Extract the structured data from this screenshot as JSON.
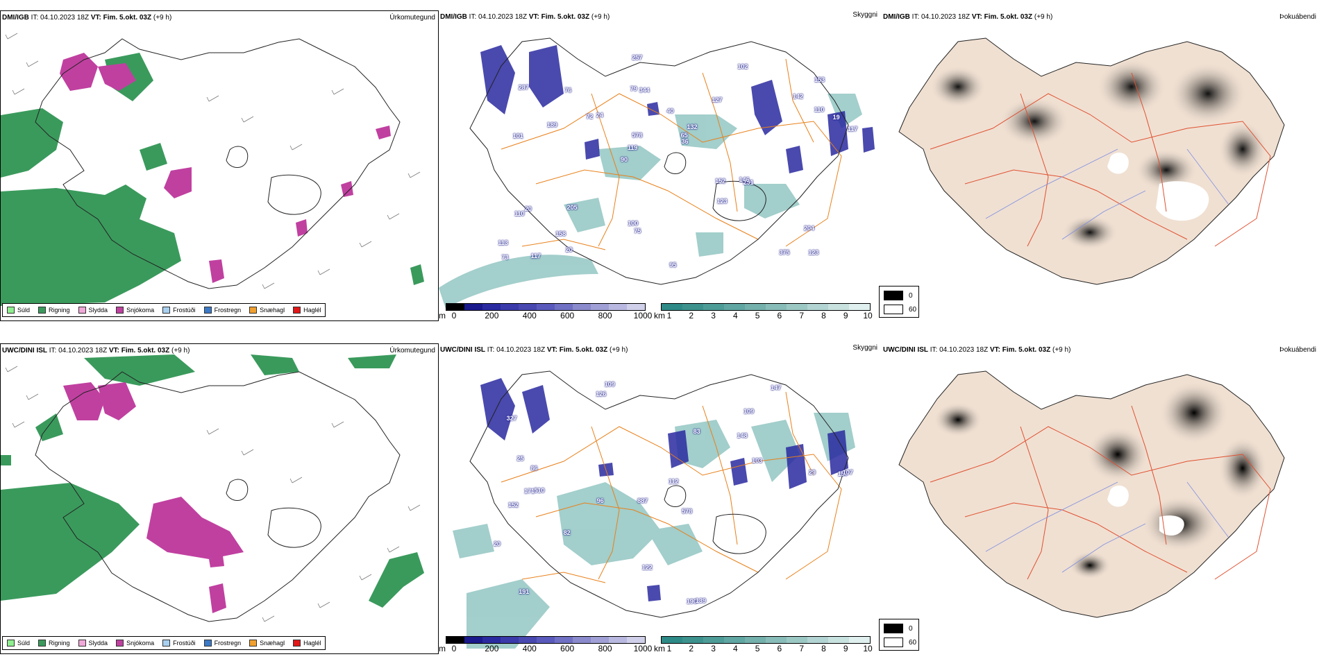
{
  "rows": [
    {
      "model": "DMI/IGB",
      "it_label": "IT:",
      "it_value": "04.10.2023 18Z",
      "vt_label": "VT:",
      "vt_value": "Fim. 5.okt. 03Z",
      "lead": "(+9 h)"
    },
    {
      "model": "UWC/DINI ISL",
      "it_label": "IT:",
      "it_value": "04.10.2023 18Z",
      "vt_label": "VT:",
      "vt_value": "Fim. 5.okt. 03Z",
      "lead": "(+9 h)"
    }
  ],
  "titles": {
    "precip_type": "Úrkomutegund",
    "visibility": "Skyggni",
    "fog": "Þokuábendi"
  },
  "precip_legend": [
    {
      "label": "Súld",
      "color": "#90ee90"
    },
    {
      "label": "Rigning",
      "color": "#3a9a5c"
    },
    {
      "label": "Slydda",
      "color": "#f0a8d8"
    },
    {
      "label": "Snjókoma",
      "color": "#c040a0"
    },
    {
      "label": "Frostúði",
      "color": "#a8d0f0"
    },
    {
      "label": "Frostregn",
      "color": "#3a7ac8"
    },
    {
      "label": "Snæhagl",
      "color": "#f0a030"
    },
    {
      "label": "Haglél",
      "color": "#e01818"
    }
  ],
  "cloud_base_bar": {
    "unit": "m",
    "ticks": [
      "0",
      "200",
      "400",
      "600",
      "800",
      "1000"
    ],
    "colors": [
      "#000000",
      "#1a1a8c",
      "#2a2aa0",
      "#3a3aaa",
      "#4848b0",
      "#5a5abc",
      "#7070c4",
      "#8a8acc",
      "#a0a0d6",
      "#b8b8e0",
      "#d0d0ea"
    ]
  },
  "visibility_bar": {
    "unit": "km",
    "ticks": [
      "1",
      "2",
      "3",
      "4",
      "5",
      "6",
      "7",
      "8",
      "9",
      "10"
    ],
    "colors": [
      "#2e8a86",
      "#3d928e",
      "#4e9c98",
      "#60a6a2",
      "#74b0ac",
      "#88bcb8",
      "#9cc8c4",
      "#b2d4d2",
      "#c8e2e0",
      "#e0f0ef"
    ]
  },
  "fog_legend": [
    {
      "label": "0",
      "color": "#000000"
    },
    {
      "label": "60",
      "color": "#ffffff"
    }
  ],
  "visibility_labels_top": [
    "123",
    "101",
    "153",
    "90",
    "127",
    "117",
    "79",
    "40",
    "20",
    "24",
    "113",
    "158",
    "344",
    "132",
    "291",
    "287",
    "257",
    "117",
    "152",
    "110",
    "119",
    "100",
    "578",
    "76",
    "102",
    "205",
    "375",
    "204",
    "146",
    "95",
    "72",
    "189",
    "123",
    "20",
    "19",
    "65",
    "73",
    "75",
    "36",
    "110",
    "142"
  ],
  "visibility_labels_bottom": [
    "109",
    "109",
    "157",
    "887",
    "578",
    "510",
    "327",
    "148",
    "152",
    "83",
    "112",
    "191",
    "126",
    "96",
    "190",
    "139",
    "122",
    "147",
    "103",
    "82",
    "86",
    "171",
    "107",
    "29",
    "20",
    "25"
  ]
}
